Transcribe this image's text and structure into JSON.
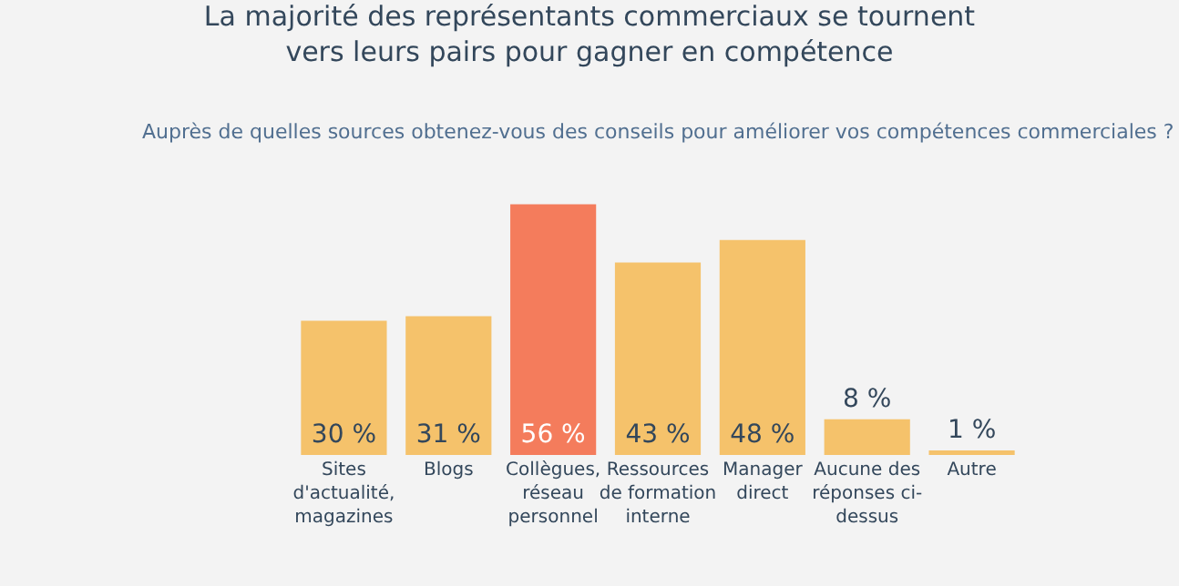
{
  "chart_data": {
    "type": "bar",
    "title": "La majorité des représentants commerciaux se tournent\nvers leurs pairs pour gagner en compétence",
    "subtitle": "Auprès de quelles sources obtenez-vous des conseils pour améliorer vos compétences commerciales ?",
    "categories": [
      "Sites d'actualité, magazines",
      "Blogs",
      "Collègues, réseau personnel",
      "Ressources de formation interne",
      "Manager direct",
      "Aucune des réponses ci-dessus",
      "Autre"
    ],
    "values": [
      30,
      31,
      56,
      43,
      48,
      8,
      1
    ],
    "value_labels": [
      "30 %",
      "31 %",
      "56 %",
      "43 %",
      "48 %",
      "8 %",
      "1 %"
    ],
    "colors": [
      "#f5c26b",
      "#f5c26b",
      "#f47c5c",
      "#f5c26b",
      "#f5c26b",
      "#f5c26b",
      "#f5c26b"
    ],
    "tick_labels": "x",
    "grid": false
  }
}
